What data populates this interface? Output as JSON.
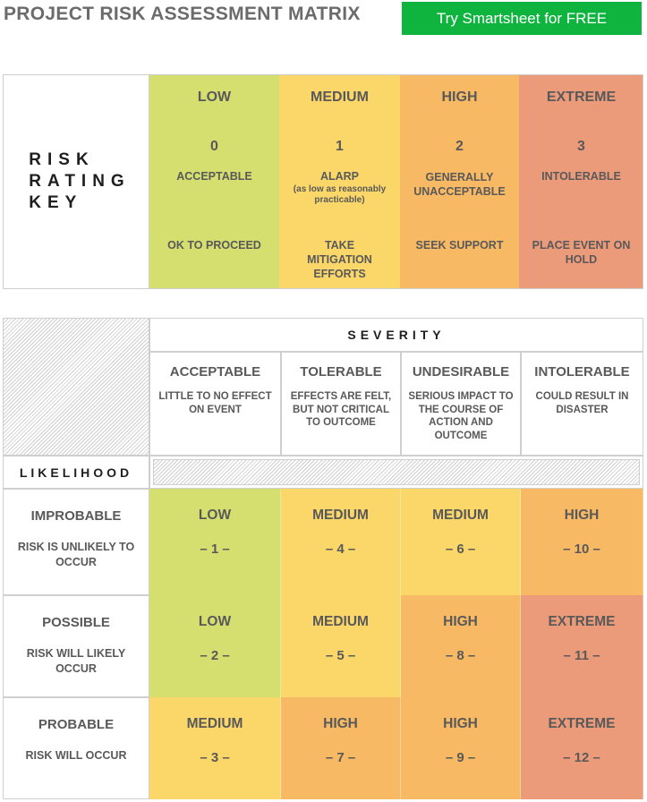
{
  "header": {
    "title": "PROJECT RISK ASSESSMENT MATRIX",
    "cta_label": "Try Smartsheet for FREE"
  },
  "colors": {
    "low": "#d5df70",
    "medium": "#fbd76a",
    "high": "#f8b965",
    "extreme": "#ec9b7a",
    "cta": "#0fb43f"
  },
  "rating_key": {
    "label": "RISK\nRATING\nKEY",
    "columns": [
      {
        "category": "LOW",
        "number": "0",
        "label": "ACCEPTABLE",
        "sub": "",
        "action": "OK TO PROCEED",
        "color": "low"
      },
      {
        "category": "MEDIUM",
        "number": "1",
        "label": "ALARP",
        "sub": "(as low as reasonably practicable)",
        "action": "TAKE MITIGATION EFFORTS",
        "color": "medium"
      },
      {
        "category": "HIGH",
        "number": "2",
        "label": "GENERALLY UNACCEPTABLE",
        "sub": "",
        "action": "SEEK SUPPORT",
        "color": "high"
      },
      {
        "category": "EXTREME",
        "number": "3",
        "label": "INTOLERABLE",
        "sub": "",
        "action": "PLACE EVENT ON HOLD",
        "color": "extreme"
      }
    ]
  },
  "matrix": {
    "severity_label": "SEVERITY",
    "likelihood_label": "LIKELIHOOD",
    "severity": [
      {
        "title": "ACCEPTABLE",
        "desc": "LITTLE TO NO EFFECT ON EVENT"
      },
      {
        "title": "TOLERABLE",
        "desc": "EFFECTS ARE FELT, BUT NOT CRITICAL TO OUTCOME"
      },
      {
        "title": "UNDESIRABLE",
        "desc": "SERIOUS IMPACT TO THE COURSE OF ACTION AND OUTCOME"
      },
      {
        "title": "INTOLERABLE",
        "desc": "COULD RESULT IN DISASTER"
      }
    ],
    "rows": [
      {
        "title": "IMPROBABLE",
        "desc": "RISK IS UNLIKELY TO OCCUR",
        "cells": [
          {
            "level": "LOW",
            "score": "– 1 –",
            "color": "low"
          },
          {
            "level": "MEDIUM",
            "score": "– 4 –",
            "color": "medium"
          },
          {
            "level": "MEDIUM",
            "score": "– 6 –",
            "color": "medium"
          },
          {
            "level": "HIGH",
            "score": "– 10 –",
            "color": "high"
          }
        ]
      },
      {
        "title": "POSSIBLE",
        "desc": "RISK WILL LIKELY OCCUR",
        "cells": [
          {
            "level": "LOW",
            "score": "– 2 –",
            "color": "low"
          },
          {
            "level": "MEDIUM",
            "score": "– 5 –",
            "color": "medium"
          },
          {
            "level": "HIGH",
            "score": "– 8 –",
            "color": "high"
          },
          {
            "level": "EXTREME",
            "score": "– 11 –",
            "color": "extreme"
          }
        ]
      },
      {
        "title": "PROBABLE",
        "desc": "RISK WILL OCCUR",
        "cells": [
          {
            "level": "MEDIUM",
            "score": "– 3 –",
            "color": "medium"
          },
          {
            "level": "HIGH",
            "score": "– 7 –",
            "color": "high"
          },
          {
            "level": "HIGH",
            "score": "– 9 –",
            "color": "high"
          },
          {
            "level": "EXTREME",
            "score": "– 12 –",
            "color": "extreme"
          }
        ]
      }
    ]
  }
}
